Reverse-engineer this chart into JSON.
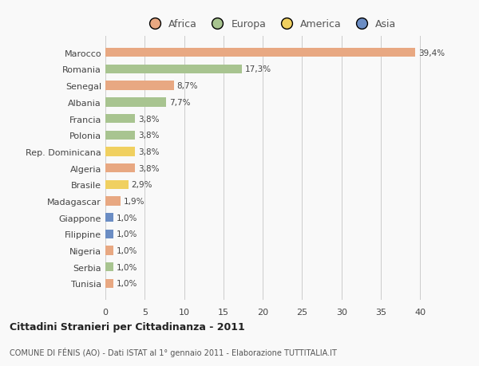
{
  "countries": [
    "Tunisia",
    "Serbia",
    "Nigeria",
    "Filippine",
    "Giappone",
    "Madagascar",
    "Brasile",
    "Algeria",
    "Rep. Dominicana",
    "Polonia",
    "Francia",
    "Albania",
    "Senegal",
    "Romania",
    "Marocco"
  ],
  "values": [
    1.0,
    1.0,
    1.0,
    1.0,
    1.0,
    1.9,
    2.9,
    3.8,
    3.8,
    3.8,
    3.8,
    7.7,
    8.7,
    17.3,
    39.4
  ],
  "labels": [
    "1,0%",
    "1,0%",
    "1,0%",
    "1,0%",
    "1,0%",
    "1,9%",
    "2,9%",
    "3,8%",
    "3,8%",
    "3,8%",
    "3,8%",
    "7,7%",
    "8,7%",
    "17,3%",
    "39,4%"
  ],
  "colors": [
    "#e8a882",
    "#a8c490",
    "#e8a882",
    "#6b8dc4",
    "#6b8dc4",
    "#e8a882",
    "#f0d060",
    "#e8a882",
    "#f0d060",
    "#a8c490",
    "#a8c490",
    "#a8c490",
    "#e8a882",
    "#a8c490",
    "#e8a882"
  ],
  "legend_labels": [
    "Africa",
    "Europa",
    "America",
    "Asia"
  ],
  "legend_colors": [
    "#e8a882",
    "#a8c490",
    "#f0d060",
    "#6b8dc4"
  ],
  "title": "Cittadini Stranieri per Cittadinanza - 2011",
  "subtitle": "COMUNE DI FÉNIS (AO) - Dati ISTAT al 1° gennaio 2011 - Elaborazione TUTTITALIA.IT",
  "xlim": [
    0,
    42
  ],
  "xticks": [
    0,
    5,
    10,
    15,
    20,
    25,
    30,
    35,
    40
  ],
  "bg_color": "#f9f9f9",
  "bar_height": 0.55
}
